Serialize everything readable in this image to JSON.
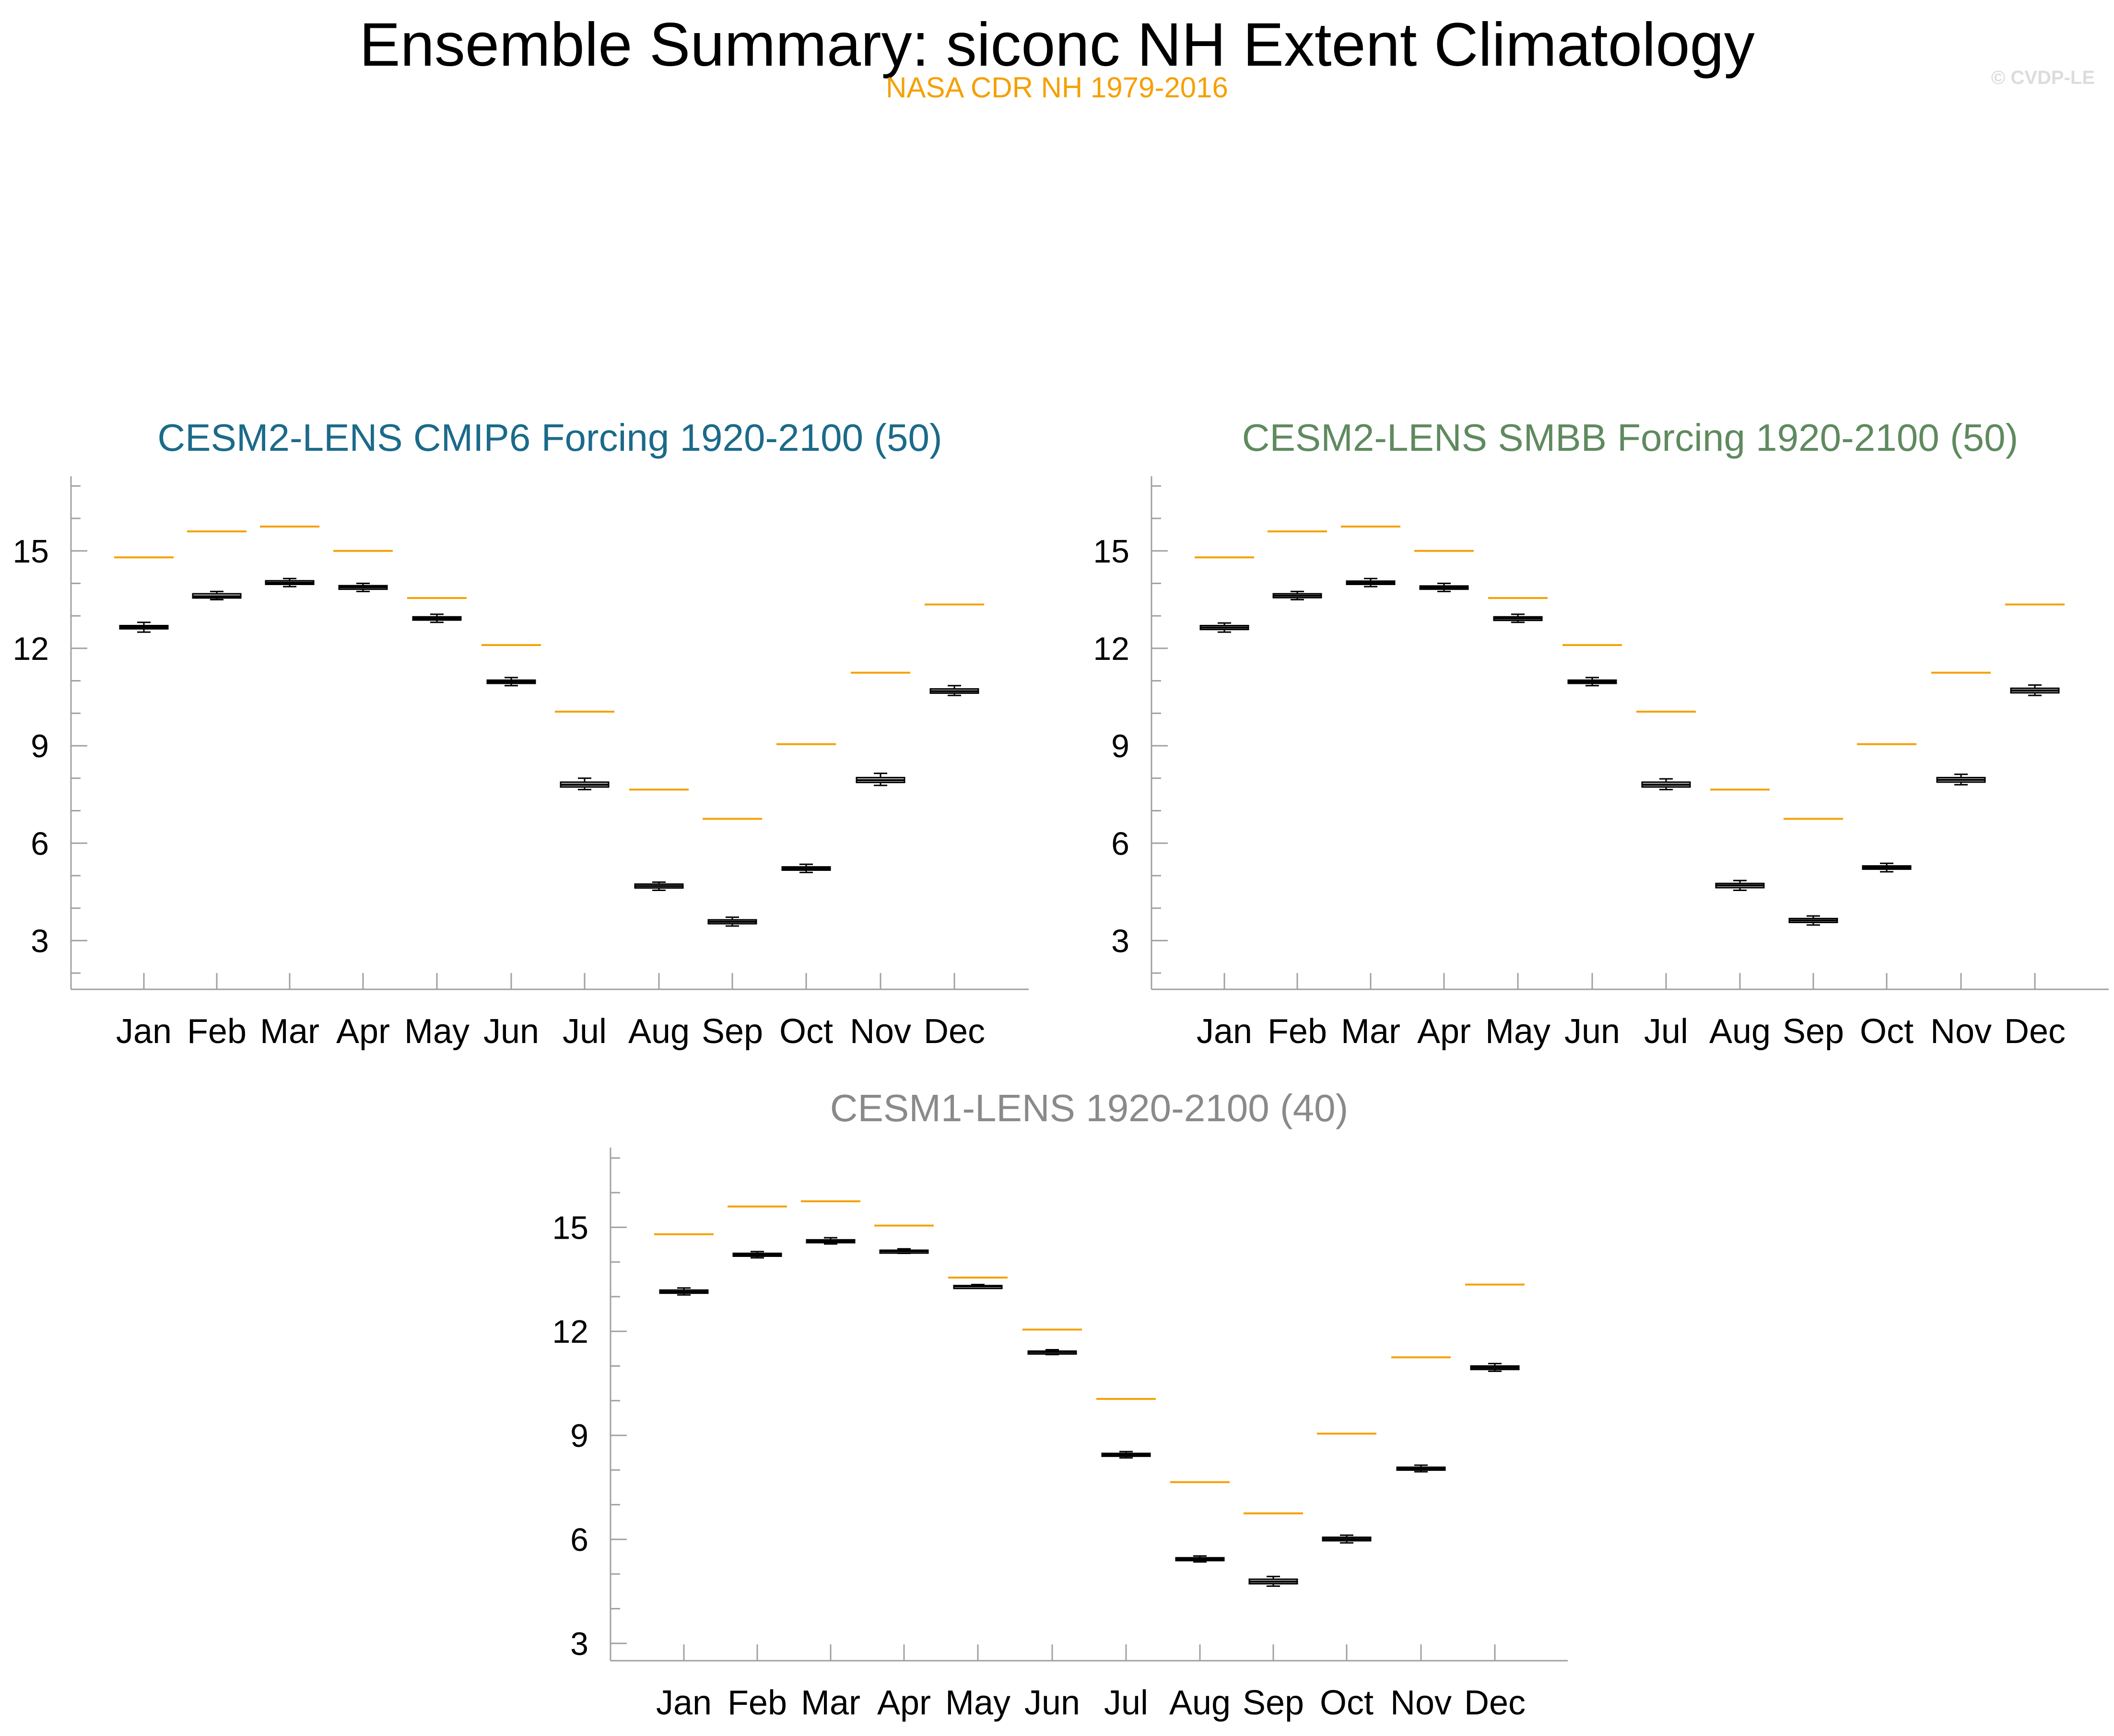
{
  "title": "Ensemble Summary: siconc NH Extent Climatology",
  "subtitle": "NASA CDR NH 1979-2016",
  "copyright": "© CVDP-LE",
  "colors": {
    "observation": "#f5a000",
    "panel_title_1": "#1b6a8a",
    "panel_title_2": "#5f8a5f",
    "panel_title_3": "#8a8a8a",
    "box_fill": "#c8c8c8",
    "axis": "#a0a0a0"
  },
  "chart_data": [
    {
      "type": "box",
      "title": "CESM2-LENS CMIP6 Forcing 1920-2100 (50)",
      "categories": [
        "Jan",
        "Feb",
        "Mar",
        "Apr",
        "May",
        "Jun",
        "Jul",
        "Aug",
        "Sep",
        "Oct",
        "Nov",
        "Dec"
      ],
      "ylim": [
        1.5,
        17.3
      ],
      "yticks": [
        3,
        6,
        9,
        12,
        15
      ],
      "observation": [
        14.8,
        15.6,
        15.75,
        15.0,
        13.55,
        12.1,
        10.05,
        7.65,
        6.75,
        9.05,
        11.25,
        13.35
      ],
      "boxes": [
        {
          "min": 12.5,
          "q1": 12.6,
          "median": 12.65,
          "q3": 12.7,
          "max": 12.8
        },
        {
          "min": 13.5,
          "q1": 13.55,
          "median": 13.6,
          "q3": 13.68,
          "max": 13.75
        },
        {
          "min": 13.9,
          "q1": 13.97,
          "median": 14.02,
          "q3": 14.08,
          "max": 14.15
        },
        {
          "min": 13.75,
          "q1": 13.82,
          "median": 13.88,
          "q3": 13.93,
          "max": 14.0
        },
        {
          "min": 12.8,
          "q1": 12.87,
          "median": 12.92,
          "q3": 12.97,
          "max": 13.05
        },
        {
          "min": 10.85,
          "q1": 10.92,
          "median": 10.97,
          "q3": 11.02,
          "max": 11.1
        },
        {
          "min": 7.65,
          "q1": 7.73,
          "median": 7.8,
          "q3": 7.88,
          "max": 8.0
        },
        {
          "min": 4.55,
          "q1": 4.62,
          "median": 4.68,
          "q3": 4.74,
          "max": 4.8
        },
        {
          "min": 3.45,
          "q1": 3.52,
          "median": 3.58,
          "q3": 3.64,
          "max": 3.72
        },
        {
          "min": 5.1,
          "q1": 5.17,
          "median": 5.22,
          "q3": 5.27,
          "max": 5.35
        },
        {
          "min": 7.78,
          "q1": 7.87,
          "median": 7.94,
          "q3": 8.02,
          "max": 8.15
        },
        {
          "min": 10.55,
          "q1": 10.62,
          "median": 10.68,
          "q3": 10.75,
          "max": 10.85
        }
      ]
    },
    {
      "type": "box",
      "title": "CESM2-LENS SMBB Forcing 1920-2100 (50)",
      "categories": [
        "Jan",
        "Feb",
        "Mar",
        "Apr",
        "May",
        "Jun",
        "Jul",
        "Aug",
        "Sep",
        "Oct",
        "Nov",
        "Dec"
      ],
      "ylim": [
        1.5,
        17.3
      ],
      "yticks": [
        3,
        6,
        9,
        12,
        15
      ],
      "observation": [
        14.8,
        15.6,
        15.75,
        15.0,
        13.55,
        12.1,
        10.05,
        7.65,
        6.75,
        9.05,
        11.25,
        13.35
      ],
      "boxes": [
        {
          "min": 12.5,
          "q1": 12.58,
          "median": 12.64,
          "q3": 12.7,
          "max": 12.78
        },
        {
          "min": 13.5,
          "q1": 13.56,
          "median": 13.62,
          "q3": 13.68,
          "max": 13.75
        },
        {
          "min": 13.9,
          "q1": 13.97,
          "median": 14.02,
          "q3": 14.07,
          "max": 14.15
        },
        {
          "min": 13.75,
          "q1": 13.82,
          "median": 13.87,
          "q3": 13.92,
          "max": 14.0
        },
        {
          "min": 12.8,
          "q1": 12.86,
          "median": 12.92,
          "q3": 12.97,
          "max": 13.05
        },
        {
          "min": 10.85,
          "q1": 10.92,
          "median": 10.97,
          "q3": 11.02,
          "max": 11.1
        },
        {
          "min": 7.65,
          "q1": 7.73,
          "median": 7.8,
          "q3": 7.88,
          "max": 7.98
        },
        {
          "min": 4.55,
          "q1": 4.63,
          "median": 4.7,
          "q3": 4.76,
          "max": 4.85
        },
        {
          "min": 3.48,
          "q1": 3.56,
          "median": 3.62,
          "q3": 3.68,
          "max": 3.76
        },
        {
          "min": 5.12,
          "q1": 5.2,
          "median": 5.25,
          "q3": 5.3,
          "max": 5.38
        },
        {
          "min": 7.8,
          "q1": 7.88,
          "median": 7.95,
          "q3": 8.02,
          "max": 8.12
        },
        {
          "min": 10.55,
          "q1": 10.63,
          "median": 10.7,
          "q3": 10.77,
          "max": 10.87
        }
      ]
    },
    {
      "type": "box",
      "title": "CESM1-LENS 1920-2100 (40)",
      "categories": [
        "Jan",
        "Feb",
        "Mar",
        "Apr",
        "May",
        "Jun",
        "Jul",
        "Aug",
        "Sep",
        "Oct",
        "Nov",
        "Dec"
      ],
      "ylim": [
        2.5,
        17.3
      ],
      "yticks": [
        3,
        6,
        9,
        12,
        15
      ],
      "observation": [
        14.8,
        15.6,
        15.75,
        15.05,
        13.55,
        12.05,
        10.05,
        7.65,
        6.75,
        9.05,
        11.25,
        13.35
      ],
      "boxes": [
        {
          "min": 13.05,
          "q1": 13.1,
          "median": 13.14,
          "q3": 13.19,
          "max": 13.25
        },
        {
          "min": 14.12,
          "q1": 14.17,
          "median": 14.21,
          "q3": 14.25,
          "max": 14.3
        },
        {
          "min": 14.52,
          "q1": 14.57,
          "median": 14.6,
          "q3": 14.64,
          "max": 14.7
        },
        {
          "min": 14.25,
          "q1": 14.28,
          "median": 14.31,
          "q3": 14.34,
          "max": 14.38
        },
        {
          "min": 13.25,
          "q1": 13.27,
          "median": 13.3,
          "q3": 13.32,
          "max": 13.35
        },
        {
          "min": 11.33,
          "q1": 11.37,
          "median": 11.4,
          "q3": 11.43,
          "max": 11.47
        },
        {
          "min": 8.35,
          "q1": 8.4,
          "median": 8.44,
          "q3": 8.48,
          "max": 8.53
        },
        {
          "min": 5.35,
          "q1": 5.39,
          "median": 5.43,
          "q3": 5.47,
          "max": 5.52
        },
        {
          "min": 4.65,
          "q1": 4.72,
          "median": 4.78,
          "q3": 4.85,
          "max": 4.93
        },
        {
          "min": 5.9,
          "q1": 5.96,
          "median": 6.01,
          "q3": 6.06,
          "max": 6.12
        },
        {
          "min": 7.95,
          "q1": 8.0,
          "median": 8.04,
          "q3": 8.08,
          "max": 8.14
        },
        {
          "min": 10.85,
          "q1": 10.9,
          "median": 10.95,
          "q3": 11.0,
          "max": 11.07
        }
      ]
    }
  ]
}
